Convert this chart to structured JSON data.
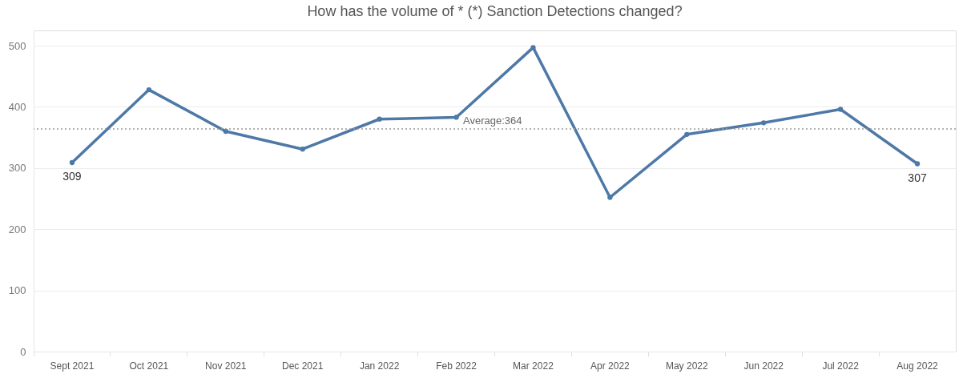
{
  "chart_data": {
    "type": "line",
    "title": "How has the volume of  * (*) Sanction Detections changed?",
    "categories": [
      "Sept 2021",
      "Oct 2021",
      "Nov 2021",
      "Dec 2021",
      "Jan 2022",
      "Feb 2022",
      "Mar 2022",
      "Apr 2022",
      "May 2022",
      "Jun 2022",
      "Jul 2022",
      "Aug 2022"
    ],
    "values": [
      309,
      428,
      360,
      331,
      380,
      383,
      497,
      252,
      355,
      374,
      396,
      307
    ],
    "value_labels": [
      "309",
      null,
      null,
      null,
      null,
      null,
      null,
      null,
      null,
      null,
      null,
      "307"
    ],
    "color": "#4e79a7",
    "marker": "circle",
    "line_style": "solid",
    "ylim": [
      0,
      525
    ],
    "yticks": [
      0,
      100,
      200,
      300,
      400,
      500
    ],
    "grid": "y",
    "ref_lines": [
      {
        "axis": "y",
        "value": 364,
        "label": "Average:364",
        "color": "#999999",
        "line_style": "dotted"
      }
    ]
  }
}
